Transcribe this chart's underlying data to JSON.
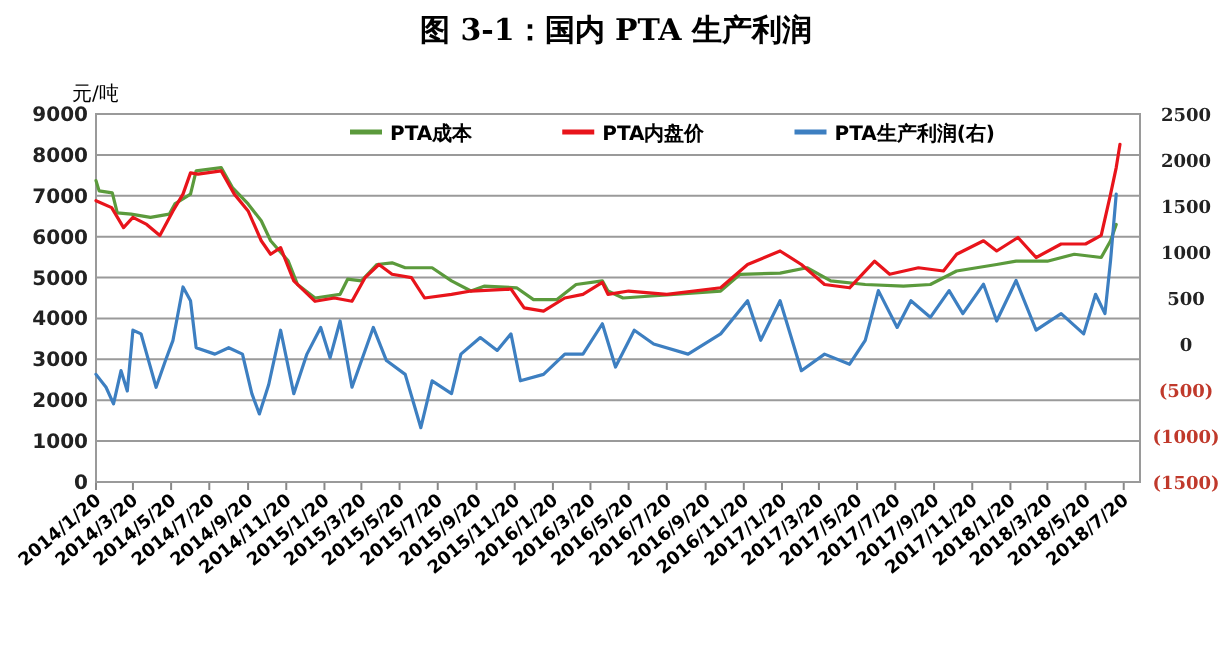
{
  "chart_data": {
    "type": "line",
    "title": "图 3-1：国内 PTA 生产利润",
    "ylabel": "元/吨",
    "legend": "top",
    "grid": "y",
    "marker": "none",
    "line_style": "solid",
    "xlim": [
      "2014-01-20",
      "2018-08-15"
    ],
    "xticks": [
      {
        "value": "2014-01-20",
        "label": "2014/1/20"
      },
      {
        "value": "2014-03-20",
        "label": "2014/3/20"
      },
      {
        "value": "2014-05-20",
        "label": "2014/5/20"
      },
      {
        "value": "2014-07-20",
        "label": "2014/7/20"
      },
      {
        "value": "2014-09-20",
        "label": "2014/9/20"
      },
      {
        "value": "2014-11-20",
        "label": "2014/11/20"
      },
      {
        "value": "2015-01-20",
        "label": "2015/1/20"
      },
      {
        "value": "2015-03-20",
        "label": "2015/3/20"
      },
      {
        "value": "2015-05-20",
        "label": "2015/5/20"
      },
      {
        "value": "2015-07-20",
        "label": "2015/7/20"
      },
      {
        "value": "2015-09-20",
        "label": "2015/9/20"
      },
      {
        "value": "2015-11-20",
        "label": "2015/11/20"
      },
      {
        "value": "2016-01-20",
        "label": "2016/1/20"
      },
      {
        "value": "2016-03-20",
        "label": "2016/3/20"
      },
      {
        "value": "2016-05-20",
        "label": "2016/5/20"
      },
      {
        "value": "2016-07-20",
        "label": "2016/7/20"
      },
      {
        "value": "2016-09-20",
        "label": "2016/9/20"
      },
      {
        "value": "2016-11-20",
        "label": "2016/11/20"
      },
      {
        "value": "2017-01-20",
        "label": "2017/1/20"
      },
      {
        "value": "2017-03-20",
        "label": "2017/3/20"
      },
      {
        "value": "2017-05-20",
        "label": "2017/5/20"
      },
      {
        "value": "2017-07-20",
        "label": "2017/7/20"
      },
      {
        "value": "2017-09-20",
        "label": "2017/9/20"
      },
      {
        "value": "2017-11-20",
        "label": "2017/11/20"
      },
      {
        "value": "2018-01-20",
        "label": "2018/1/20"
      },
      {
        "value": "2018-03-20",
        "label": "2018/3/20"
      },
      {
        "value": "2018-05-20",
        "label": "2018/5/20"
      },
      {
        "value": "2018-07-20",
        "label": "2018/7/20"
      }
    ],
    "ylim": [
      0,
      9000
    ],
    "yticks": [
      0,
      1000,
      2000,
      3000,
      4000,
      5000,
      6000,
      7000,
      8000,
      9000
    ],
    "y2lim": [
      -1500,
      2500
    ],
    "y2ticks": [
      {
        "value": -1500,
        "label": "(1500)"
      },
      {
        "value": -1000,
        "label": "(1000)"
      },
      {
        "value": -500,
        "label": "(500)"
      },
      0,
      500,
      1000,
      1500,
      2000,
      2500
    ],
    "series": [
      {
        "name": "PTA成本",
        "color": "#5b9a3c",
        "x": [
          "2014-01-20",
          "2014-01-25",
          "2014-02-15",
          "2014-02-23",
          "2014-03-17",
          "2014-04-17",
          "2014-05-17",
          "2014-05-26",
          "2014-06-20",
          "2014-06-29",
          "2014-08-08",
          "2014-08-26",
          "2014-09-20",
          "2014-10-11",
          "2014-10-26",
          "2014-11-23",
          "2014-12-08",
          "2015-01-05",
          "2015-02-14",
          "2015-02-26",
          "2015-03-20",
          "2015-04-14",
          "2015-05-08",
          "2015-05-29",
          "2015-07-11",
          "2015-08-11",
          "2015-09-11",
          "2015-10-02",
          "2015-11-23",
          "2015-12-20",
          "2016-01-26",
          "2016-02-26",
          "2016-04-08",
          "2016-04-17",
          "2016-05-11",
          "2016-10-14",
          "2016-11-14",
          "2017-01-17",
          "2017-03-01",
          "2017-04-08",
          "2017-06-02",
          "2017-08-02",
          "2017-09-14",
          "2017-10-26",
          "2017-12-29",
          "2018-01-29",
          "2018-03-20",
          "2018-05-02",
          "2018-06-14",
          "2018-06-29",
          "2018-07-08"
        ],
        "values": [
          7370,
          7120,
          7070,
          6580,
          6550,
          6470,
          6550,
          6800,
          7040,
          7610,
          7690,
          7200,
          6800,
          6390,
          5900,
          5410,
          4830,
          4500,
          4590,
          4960,
          4920,
          5320,
          5360,
          5240,
          5240,
          4920,
          4670,
          4790,
          4750,
          4460,
          4460,
          4830,
          4920,
          4670,
          4500,
          4670,
          5080,
          5110,
          5240,
          4920,
          4830,
          4790,
          4830,
          5160,
          5320,
          5400,
          5400,
          5570,
          5490,
          5900,
          6300
        ]
      },
      {
        "name": "PTA内盘价",
        "color": "#e8141b",
        "x": [
          "2014-01-20",
          "2014-02-14",
          "2014-03-05",
          "2014-03-20",
          "2014-04-11",
          "2014-05-02",
          "2014-05-23",
          "2014-06-08",
          "2014-06-20",
          "2014-07-02",
          "2014-08-08",
          "2014-08-29",
          "2014-09-20",
          "2014-10-11",
          "2014-10-26",
          "2014-11-11",
          "2014-12-02",
          "2015-01-05",
          "2015-02-05",
          "2015-03-05",
          "2015-03-26",
          "2015-04-17",
          "2015-05-08",
          "2015-06-08",
          "2015-06-29",
          "2015-08-11",
          "2015-09-11",
          "2015-11-14",
          "2015-12-05",
          "2016-01-05",
          "2016-02-08",
          "2016-03-08",
          "2016-04-08",
          "2016-04-17",
          "2016-05-20",
          "2016-07-20",
          "2016-10-14",
          "2016-11-26",
          "2017-01-17",
          "2017-02-20",
          "2017-03-29",
          "2017-05-08",
          "2017-06-17",
          "2017-07-11",
          "2017-08-26",
          "2017-10-05",
          "2017-10-26",
          "2017-12-08",
          "2017-12-29",
          "2018-02-01",
          "2018-03-02",
          "2018-04-11",
          "2018-05-20",
          "2018-06-14",
          "2018-06-29",
          "2018-07-08",
          "2018-07-14"
        ],
        "values": [
          6880,
          6710,
          6220,
          6470,
          6300,
          6030,
          6630,
          7040,
          7560,
          7530,
          7610,
          7040,
          6630,
          5900,
          5570,
          5730,
          4920,
          4420,
          4500,
          4420,
          5000,
          5320,
          5080,
          5000,
          4500,
          4590,
          4670,
          4720,
          4260,
          4180,
          4500,
          4590,
          4880,
          4590,
          4670,
          4590,
          4750,
          5320,
          5650,
          5320,
          4830,
          4750,
          5400,
          5080,
          5240,
          5160,
          5570,
          5900,
          5650,
          5980,
          5490,
          5820,
          5820,
          6030,
          7040,
          7690,
          8260
        ]
      },
      {
        "name": "PTA生产利润(右)",
        "color": "#3d7fc1",
        "axis": "y2",
        "x": [
          "2014-01-20",
          "2014-02-05",
          "2014-02-17",
          "2014-03-01",
          "2014-03-11",
          "2014-03-20",
          "2014-04-02",
          "2014-04-26",
          "2014-05-11",
          "2014-05-23",
          "2014-06-08",
          "2014-06-20",
          "2014-06-29",
          "2014-07-29",
          "2014-08-20",
          "2014-09-11",
          "2014-09-26",
          "2014-10-08",
          "2014-10-23",
          "2014-11-11",
          "2014-12-02",
          "2014-12-23",
          "2015-01-14",
          "2015-01-29",
          "2015-02-14",
          "2015-03-05",
          "2015-04-08",
          "2015-04-29",
          "2015-05-29",
          "2015-06-23",
          "2015-07-11",
          "2015-08-11",
          "2015-08-26",
          "2015-09-26",
          "2015-10-23",
          "2015-11-14",
          "2015-11-29",
          "2016-01-05",
          "2016-02-08",
          "2016-03-08",
          "2016-04-08",
          "2016-04-29",
          "2016-05-29",
          "2016-06-29",
          "2016-08-23",
          "2016-10-14",
          "2016-11-26",
          "2016-12-17",
          "2017-01-17",
          "2017-02-20",
          "2017-03-29",
          "2017-05-08",
          "2017-06-02",
          "2017-06-23",
          "2017-07-23",
          "2017-08-14",
          "2017-09-14",
          "2017-10-14",
          "2017-11-05",
          "2017-12-08",
          "2017-12-29",
          "2018-01-29",
          "2018-03-02",
          "2018-04-11",
          "2018-05-17",
          "2018-06-05",
          "2018-06-20",
          "2018-06-29",
          "2018-07-08"
        ],
        "values": [
          -330,
          -470,
          -650,
          -290,
          -510,
          150,
          110,
          -470,
          -180,
          40,
          620,
          470,
          -40,
          -110,
          -40,
          -110,
          -540,
          -760,
          -440,
          150,
          -540,
          -110,
          180,
          -150,
          250,
          -470,
          180,
          -180,
          -330,
          -910,
          -400,
          -540,
          -110,
          70,
          -70,
          110,
          -400,
          -330,
          -110,
          -110,
          220,
          -250,
          150,
          0,
          -110,
          110,
          470,
          40,
          470,
          -290,
          -110,
          -220,
          40,
          580,
          180,
          470,
          290,
          580,
          330,
          650,
          250,
          690,
          150,
          330,
          110,
          540,
          330,
          910,
          1630
        ]
      }
    ]
  }
}
